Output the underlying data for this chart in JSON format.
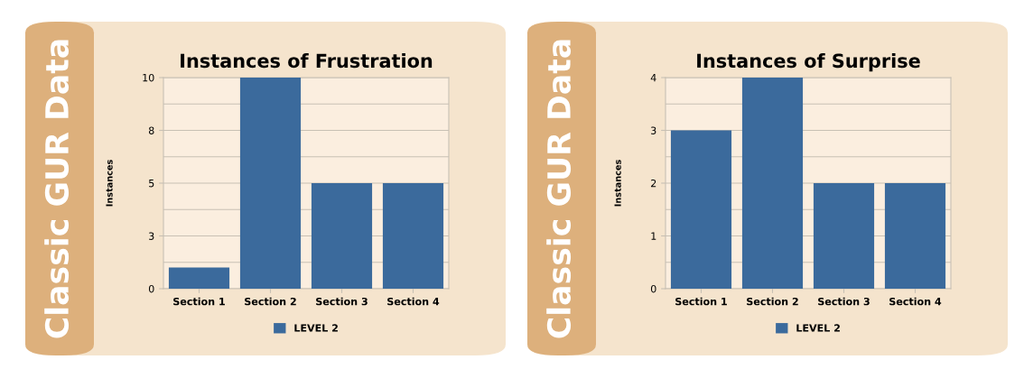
{
  "chart_data": [
    {
      "type": "bar",
      "title": "Instances of Frustration",
      "ylabel": "Instances",
      "annotations": [
        "Classic GUR Data"
      ],
      "categories": [
        "Section 1",
        "Section 2",
        "Section 3",
        "Section 4"
      ],
      "series": [
        {
          "name": "LEVEL 2",
          "color": "#3b6a9c",
          "values": [
            1,
            10,
            5,
            5
          ]
        }
      ],
      "ylim": [
        0,
        10
      ],
      "yticks": [
        0,
        {
          "value": 1.25,
          "label": null
        },
        {
          "value": 2.5,
          "label": "3"
        },
        {
          "value": 3.75,
          "label": null
        },
        5,
        {
          "value": 6.25,
          "label": null
        },
        {
          "value": 7.5,
          "label": "8"
        },
        {
          "value": 8.75,
          "label": null
        },
        10
      ],
      "grid": "y",
      "legend": "bottom"
    },
    {
      "type": "bar",
      "title": "Instances of Surprise",
      "ylabel": "Instances",
      "annotations": [
        "Classic GUR Data"
      ],
      "categories": [
        "Section 1",
        "Section 2",
        "Section 3",
        "Section 4"
      ],
      "series": [
        {
          "name": "LEVEL 2",
          "color": "#3b6a9c",
          "values": [
            3,
            4,
            2,
            2
          ]
        }
      ],
      "ylim": [
        0,
        4
      ],
      "yticks": [
        0,
        {
          "value": 0.5,
          "label": null
        },
        1,
        {
          "value": 1.5,
          "label": null
        },
        2,
        {
          "value": 2.5,
          "label": null
        },
        3,
        {
          "value": 3.5,
          "label": null
        },
        4
      ],
      "grid": "y",
      "legend": "bottom"
    }
  ]
}
